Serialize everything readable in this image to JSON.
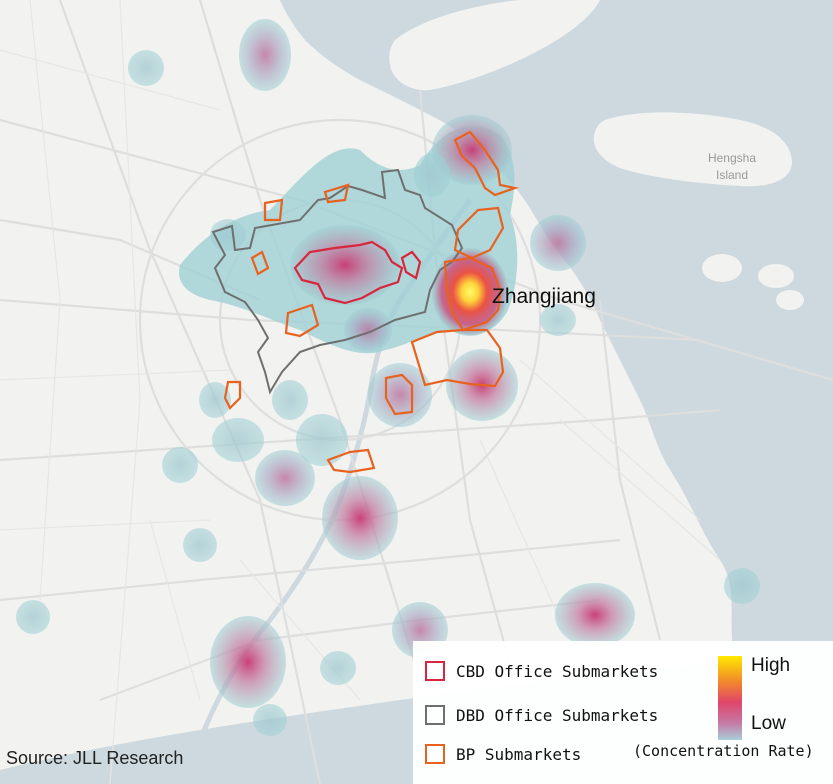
{
  "map": {
    "place_labels": [
      "Hengsha",
      "Island"
    ],
    "highlight_label": "Zhangjiang",
    "colors": {
      "land": "#f2f2f0",
      "water": "#cdd9df",
      "roads": "#dcdcdc",
      "cbd": "#d7263d",
      "dbd": "#6f6f6f",
      "bp": "#e8621f",
      "heat_low": "#9fd0d4",
      "heat_mid": "#cf4a78",
      "heat_high": "#fff23a"
    }
  },
  "legend": {
    "items": [
      {
        "label": "CBD Office Submarkets",
        "color": "#d7263d"
      },
      {
        "label": "DBD Office Submarkets",
        "color": "#6f6f6f"
      },
      {
        "label": "BP Submarkets",
        "color": "#e8621f"
      }
    ],
    "ramp": {
      "high_label": "High",
      "low_label": "Low",
      "caption": "(Concentration Rate)"
    }
  },
  "source": "Source: JLL Research"
}
